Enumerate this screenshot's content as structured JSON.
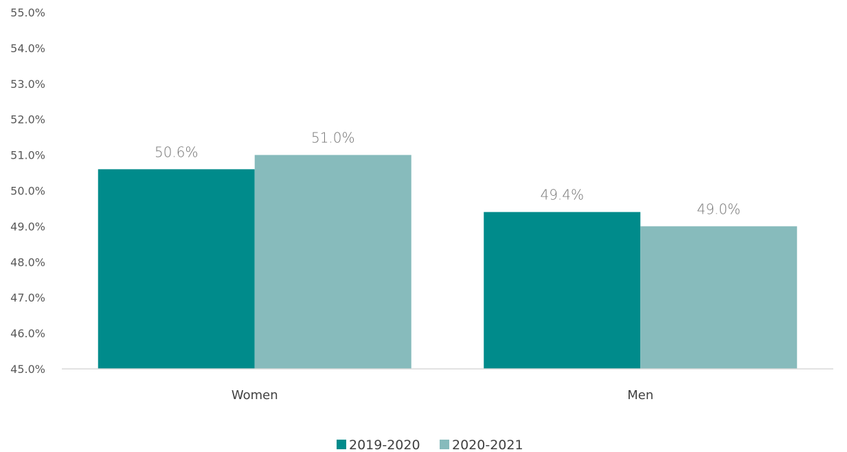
{
  "chart_data": {
    "type": "bar",
    "categories": [
      "Women",
      "Men"
    ],
    "series": [
      {
        "name": "2019-2020",
        "values": [
          50.6,
          49.4
        ],
        "labels": [
          "50.6%",
          "49.4%"
        ],
        "color": "#008B8B"
      },
      {
        "name": "2020-2021",
        "values": [
          51.0,
          49.0
        ],
        "labels": [
          "51.0%",
          "49.0%"
        ],
        "color": "#87BBBC"
      }
    ],
    "ylim": [
      45,
      55
    ],
    "yticks": [
      45,
      46,
      47,
      48,
      49,
      50,
      51,
      52,
      53,
      54,
      55
    ],
    "ytick_labels": [
      "45.0%",
      "46.0%",
      "47.0%",
      "48.0%",
      "49.0%",
      "50.0%",
      "51.0%",
      "52.0%",
      "53.0%",
      "54.0%",
      "55.0%"
    ],
    "title": "",
    "xlabel": "",
    "ylabel": "",
    "grid": false,
    "legend_position": "bottom-center",
    "axis_color": "#D9D9D9"
  }
}
